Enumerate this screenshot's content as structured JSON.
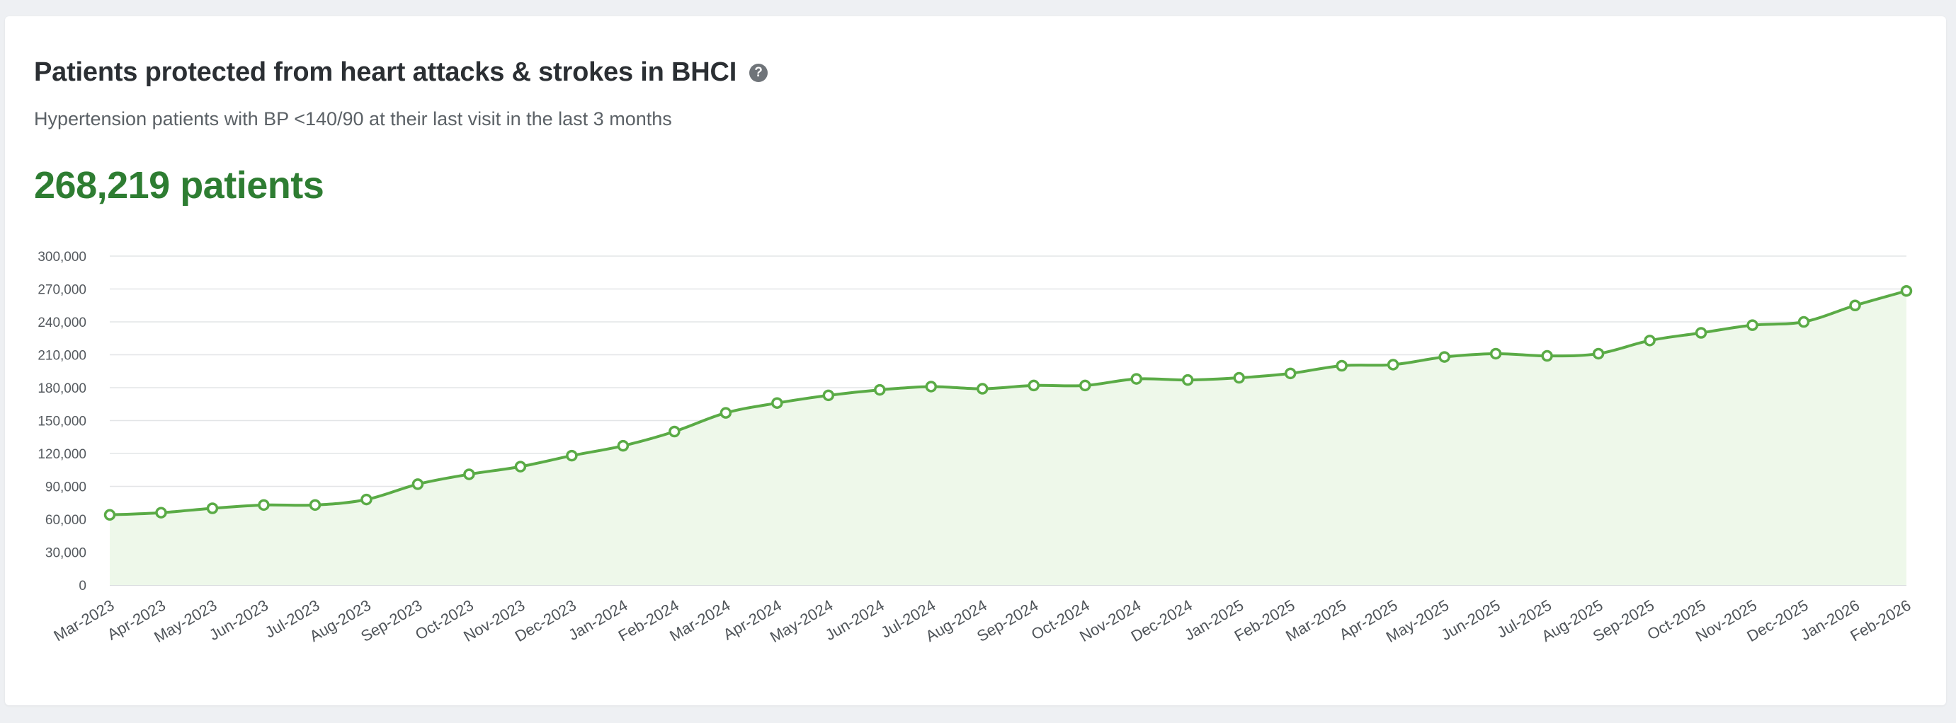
{
  "card": {
    "title": "Patients protected from heart attacks & strokes in BHCI",
    "subtitle": "Hypertension patients with BP <140/90 at their last visit in the last 3 months",
    "metric": "268,219 patients",
    "help_icon": "question-circle-icon"
  },
  "colors": {
    "line": "#5aab46",
    "area": "#eef8ea",
    "metric": "#2e7d32",
    "grid": "#e3e5e7"
  },
  "chart_data": {
    "type": "area",
    "grid": true,
    "ylim": [
      0,
      300000
    ],
    "yticks": [
      0,
      30000,
      60000,
      90000,
      120000,
      150000,
      180000,
      210000,
      240000,
      270000,
      300000
    ],
    "ytick_labels": [
      "0",
      "30,000",
      "60,000",
      "90,000",
      "120,000",
      "150,000",
      "180,000",
      "210,000",
      "240,000",
      "270,000",
      "300,000"
    ],
    "categories": [
      "Mar-2023",
      "Apr-2023",
      "May-2023",
      "Jun-2023",
      "Jul-2023",
      "Aug-2023",
      "Sep-2023",
      "Oct-2023",
      "Nov-2023",
      "Dec-2023",
      "Jan-2024",
      "Feb-2024",
      "Mar-2024",
      "Apr-2024",
      "May-2024",
      "Jun-2024",
      "Jul-2024",
      "Aug-2024",
      "Sep-2024",
      "Oct-2024",
      "Nov-2024",
      "Dec-2024",
      "Jan-2025",
      "Feb-2025",
      "Mar-2025",
      "Apr-2025",
      "May-2025",
      "Jun-2025",
      "Jul-2025",
      "Aug-2025",
      "Sep-2025",
      "Oct-2025",
      "Nov-2025",
      "Dec-2025",
      "Jan-2026",
      "Feb-2026"
    ],
    "values": [
      64000,
      66000,
      70000,
      73000,
      73000,
      78000,
      92000,
      101000,
      108000,
      118000,
      127000,
      140000,
      157000,
      166000,
      173000,
      178000,
      181000,
      179000,
      182000,
      182000,
      188000,
      187000,
      189000,
      193000,
      200000,
      201000,
      208000,
      211000,
      209000,
      211000,
      223000,
      230000,
      237000,
      240000,
      255000,
      268219
    ]
  }
}
